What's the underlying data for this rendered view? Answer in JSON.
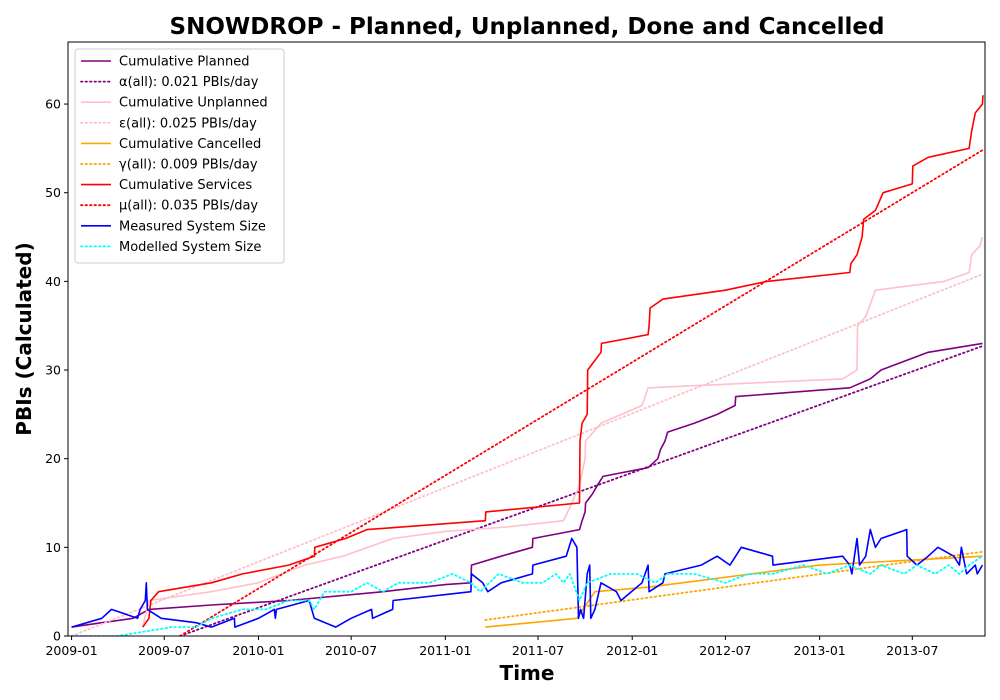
{
  "chart_data": {
    "type": "line",
    "title": "SNOWDROP - Planned, Unplanned, Done  and Cancelled",
    "xlabel": "Time",
    "ylabel": "PBIs (Calculated)",
    "xlim": [
      "2008-12-25",
      "2013-11-20"
    ],
    "ylim": [
      0,
      67
    ],
    "x_ticks": [
      "2009-01-01",
      "2009-07-01",
      "2010-01-01",
      "2010-07-01",
      "2011-01-01",
      "2011-07-01",
      "2012-01-01",
      "2012-07-01",
      "2013-01-01",
      "2013-07-01"
    ],
    "x_tick_labels": [
      "2009-01",
      "2009-07",
      "2010-01",
      "2010-07",
      "2011-01",
      "2011-07",
      "2012-01",
      "2012-07",
      "2013-01",
      "2013-07"
    ],
    "y_ticks": [
      0,
      10,
      20,
      30,
      40,
      50,
      60
    ],
    "grid": false,
    "legend_position": "top-left",
    "series": [
      {
        "name": "Cumulative Planned",
        "color": "#800080",
        "style": "solid",
        "points": [
          [
            "2009-01-01",
            1
          ],
          [
            "2009-03-01",
            1.5
          ],
          [
            "2009-05-01",
            2
          ],
          [
            "2009-06-01",
            3
          ],
          [
            "2009-10-01",
            3.5
          ],
          [
            "2010-03-01",
            4
          ],
          [
            "2010-09-01",
            5
          ],
          [
            "2011-01-01",
            5.8
          ],
          [
            "2011-02-20",
            6
          ],
          [
            "2011-02-21",
            8
          ],
          [
            "2011-04-20",
            9
          ],
          [
            "2011-06-20",
            10
          ],
          [
            "2011-06-21",
            11
          ],
          [
            "2011-09-20",
            12
          ],
          [
            "2011-09-25",
            13
          ],
          [
            "2011-10-01",
            14
          ],
          [
            "2011-10-02",
            15
          ],
          [
            "2011-10-15",
            16
          ],
          [
            "2011-10-25",
            17
          ],
          [
            "2011-11-05",
            18
          ],
          [
            "2012-02-01",
            19
          ],
          [
            "2012-02-20",
            20
          ],
          [
            "2012-02-25",
            21
          ],
          [
            "2012-03-05",
            22
          ],
          [
            "2012-03-10",
            23
          ],
          [
            "2012-05-01",
            24
          ],
          [
            "2012-06-15",
            25
          ],
          [
            "2012-07-20",
            26
          ],
          [
            "2012-07-21",
            27
          ],
          [
            "2013-03-01",
            28
          ],
          [
            "2013-04-10",
            29
          ],
          [
            "2013-05-01",
            30
          ],
          [
            "2013-08-01",
            32
          ],
          [
            "2013-11-15",
            33
          ]
        ]
      },
      {
        "name": "α(all): 0.021 PBIs/day",
        "color": "#800080",
        "style": "dotted",
        "points": [
          [
            "2009-08-01",
            0
          ],
          [
            "2013-11-15",
            32.7
          ]
        ]
      },
      {
        "name": "Cumulative Unplanned",
        "color": "#ffc0cb",
        "style": "solid",
        "points": [
          [
            "2009-05-20",
            1
          ],
          [
            "2009-06-01",
            4
          ],
          [
            "2009-10-01",
            5
          ],
          [
            "2010-01-01",
            6
          ],
          [
            "2010-04-01",
            8
          ],
          [
            "2010-06-15",
            9
          ],
          [
            "2010-09-20",
            11
          ],
          [
            "2011-01-01",
            11.8
          ],
          [
            "2011-05-01",
            12.3
          ],
          [
            "2011-08-20",
            13
          ],
          [
            "2011-09-05",
            15
          ],
          [
            "2011-09-20",
            17
          ],
          [
            "2011-10-01",
            20
          ],
          [
            "2011-10-02",
            22
          ],
          [
            "2011-11-01",
            24
          ],
          [
            "2012-01-20",
            26
          ],
          [
            "2012-02-01",
            28
          ],
          [
            "2013-02-15",
            29
          ],
          [
            "2013-03-15",
            30
          ],
          [
            "2013-03-16",
            35
          ],
          [
            "2013-04-01",
            36
          ],
          [
            "2013-04-20",
            39
          ],
          [
            "2013-09-01",
            40
          ],
          [
            "2013-10-20",
            41
          ],
          [
            "2013-10-25",
            43
          ],
          [
            "2013-11-10",
            44
          ],
          [
            "2013-11-15",
            45
          ]
        ]
      },
      {
        "name": "ε(all): 0.025 PBIs/day",
        "color": "#ffc0cb",
        "style": "dotted",
        "points": [
          [
            "2009-01-01",
            0
          ],
          [
            "2013-11-15",
            40.8
          ]
        ]
      },
      {
        "name": "Cumulative Cancelled",
        "color": "#ffa500",
        "style": "solid",
        "points": [
          [
            "2011-03-20",
            1
          ],
          [
            "2011-09-15",
            2
          ],
          [
            "2011-10-20",
            5
          ],
          [
            "2012-02-01",
            5.5
          ],
          [
            "2013-01-01",
            8
          ],
          [
            "2013-11-15",
            9
          ]
        ]
      },
      {
        "name": "γ(all): 0.009 PBIs/day",
        "color": "#ffa500",
        "style": "dotted",
        "points": [
          [
            "2011-03-20",
            1.8
          ],
          [
            "2013-11-15",
            9.5
          ]
        ]
      },
      {
        "name": "Cumulative Services",
        "color": "#ff0000",
        "style": "solid",
        "points": [
          [
            "2009-05-20",
            1
          ],
          [
            "2009-06-01",
            2
          ],
          [
            "2009-06-05",
            4
          ],
          [
            "2009-06-20",
            5
          ],
          [
            "2009-10-01",
            6
          ],
          [
            "2009-12-01",
            7
          ],
          [
            "2010-03-01",
            8
          ],
          [
            "2010-04-20",
            9
          ],
          [
            "2010-04-21",
            10
          ],
          [
            "2010-06-20",
            11
          ],
          [
            "2010-08-01",
            12
          ],
          [
            "2011-03-20",
            13
          ],
          [
            "2011-03-21",
            14
          ],
          [
            "2011-09-20",
            15
          ],
          [
            "2011-09-21",
            22
          ],
          [
            "2011-09-25",
            24
          ],
          [
            "2011-10-05",
            25
          ],
          [
            "2011-10-06",
            30
          ],
          [
            "2011-11-01",
            32
          ],
          [
            "2011-11-02",
            33
          ],
          [
            "2012-02-01",
            34
          ],
          [
            "2012-02-03",
            35
          ],
          [
            "2012-02-05",
            37
          ],
          [
            "2012-03-01",
            38
          ],
          [
            "2012-07-01",
            39
          ],
          [
            "2012-09-20",
            40
          ],
          [
            "2013-03-01",
            41
          ],
          [
            "2013-03-03",
            42
          ],
          [
            "2013-03-15",
            43
          ],
          [
            "2013-03-25",
            45
          ],
          [
            "2013-03-28",
            47
          ],
          [
            "2013-04-20",
            48
          ],
          [
            "2013-05-05",
            50
          ],
          [
            "2013-07-01",
            51
          ],
          [
            "2013-07-02",
            53
          ],
          [
            "2013-08-01",
            54
          ],
          [
            "2013-10-20",
            55
          ],
          [
            "2013-10-25",
            57
          ],
          [
            "2013-11-01",
            59
          ],
          [
            "2013-11-15",
            60
          ],
          [
            "2013-11-16",
            61
          ]
        ]
      },
      {
        "name": "μ(all): 0.035 PBIs/day",
        "color": "#ff0000",
        "style": "dotted",
        "points": [
          [
            "2009-08-01",
            0
          ],
          [
            "2013-11-15",
            54.8
          ]
        ]
      },
      {
        "name": "Measured System Size",
        "color": "#0000ff",
        "style": "solid",
        "points": [
          [
            "2009-01-01",
            1
          ],
          [
            "2009-03-01",
            2
          ],
          [
            "2009-03-20",
            3
          ],
          [
            "2009-05-10",
            2
          ],
          [
            "2009-05-15",
            3
          ],
          [
            "2009-05-25",
            4
          ],
          [
            "2009-05-27",
            6
          ],
          [
            "2009-05-29",
            3
          ],
          [
            "2009-06-25",
            2
          ],
          [
            "2009-09-01",
            1.5
          ],
          [
            "2009-10-01",
            1
          ],
          [
            "2009-11-15",
            2
          ],
          [
            "2009-11-16",
            1
          ],
          [
            "2010-01-01",
            2
          ],
          [
            "2010-02-01",
            3
          ],
          [
            "2010-02-03",
            2
          ],
          [
            "2010-02-05",
            3
          ],
          [
            "2010-04-10",
            4
          ],
          [
            "2010-04-20",
            2
          ],
          [
            "2010-06-01",
            1
          ],
          [
            "2010-07-01",
            2
          ],
          [
            "2010-08-10",
            3
          ],
          [
            "2010-08-12",
            2
          ],
          [
            "2010-09-20",
            3
          ],
          [
            "2010-09-21",
            4
          ],
          [
            "2011-02-20",
            5
          ],
          [
            "2011-02-21",
            7
          ],
          [
            "2011-03-15",
            6
          ],
          [
            "2011-03-25",
            5
          ],
          [
            "2011-04-20",
            6
          ],
          [
            "2011-06-20",
            7
          ],
          [
            "2011-06-21",
            8
          ],
          [
            "2011-08-25",
            9
          ],
          [
            "2011-09-05",
            11
          ],
          [
            "2011-09-15",
            10
          ],
          [
            "2011-09-18",
            2
          ],
          [
            "2011-09-22",
            3
          ],
          [
            "2011-09-28",
            2
          ],
          [
            "2011-10-05",
            7
          ],
          [
            "2011-10-10",
            8
          ],
          [
            "2011-10-12",
            2
          ],
          [
            "2011-10-20",
            3
          ],
          [
            "2011-11-01",
            6
          ],
          [
            "2011-12-01",
            5
          ],
          [
            "2011-12-10",
            4
          ],
          [
            "2012-01-20",
            6
          ],
          [
            "2012-02-01",
            8
          ],
          [
            "2012-02-03",
            5
          ],
          [
            "2012-03-01",
            6
          ],
          [
            "2012-03-05",
            7
          ],
          [
            "2012-05-15",
            8
          ],
          [
            "2012-06-15",
            9
          ],
          [
            "2012-07-10",
            8
          ],
          [
            "2012-08-01",
            10
          ],
          [
            "2012-10-01",
            9
          ],
          [
            "2012-10-02",
            8
          ],
          [
            "2013-02-15",
            9
          ],
          [
            "2013-03-01",
            8
          ],
          [
            "2013-03-05",
            7
          ],
          [
            "2013-03-15",
            11
          ],
          [
            "2013-03-20",
            8
          ],
          [
            "2013-04-01",
            9
          ],
          [
            "2013-04-10",
            12
          ],
          [
            "2013-04-20",
            10
          ],
          [
            "2013-05-01",
            11
          ],
          [
            "2013-06-20",
            12
          ],
          [
            "2013-06-21",
            9
          ],
          [
            "2013-07-10",
            8
          ],
          [
            "2013-08-01",
            9
          ],
          [
            "2013-08-20",
            10
          ],
          [
            "2013-09-20",
            9
          ],
          [
            "2013-10-01",
            8
          ],
          [
            "2013-10-05",
            10
          ],
          [
            "2013-10-15",
            7
          ],
          [
            "2013-11-01",
            8
          ],
          [
            "2013-11-05",
            7
          ],
          [
            "2013-11-15",
            8
          ]
        ]
      },
      {
        "name": "Modelled System Size",
        "color": "#00ffff",
        "style": "dotted",
        "points": [
          [
            "2009-01-01",
            0
          ],
          [
            "2009-04-01",
            0
          ],
          [
            "2009-07-15",
            1
          ],
          [
            "2009-09-01",
            1
          ],
          [
            "2009-10-01",
            2
          ],
          [
            "2009-12-01",
            3
          ],
          [
            "2010-01-15",
            3
          ],
          [
            "2010-03-01",
            4
          ],
          [
            "2010-04-10",
            4
          ],
          [
            "2010-04-20",
            3
          ],
          [
            "2010-05-10",
            5
          ],
          [
            "2010-07-01",
            5
          ],
          [
            "2010-08-01",
            6
          ],
          [
            "2010-09-01",
            5
          ],
          [
            "2010-10-01",
            6
          ],
          [
            "2010-12-01",
            6
          ],
          [
            "2011-01-15",
            7
          ],
          [
            "2011-02-20",
            6
          ],
          [
            "2011-03-10",
            5
          ],
          [
            "2011-04-15",
            7
          ],
          [
            "2011-06-01",
            6
          ],
          [
            "2011-07-10",
            6
          ],
          [
            "2011-08-05",
            7
          ],
          [
            "2011-08-20",
            6
          ],
          [
            "2011-09-01",
            7
          ],
          [
            "2011-09-20",
            4
          ],
          [
            "2011-10-05",
            6
          ],
          [
            "2011-11-20",
            7
          ],
          [
            "2012-01-10",
            7
          ],
          [
            "2012-02-15",
            6
          ],
          [
            "2012-03-10",
            7
          ],
          [
            "2012-05-01",
            7
          ],
          [
            "2012-07-01",
            6
          ],
          [
            "2012-08-15",
            7
          ],
          [
            "2012-10-01",
            7
          ],
          [
            "2012-12-01",
            8
          ],
          [
            "2013-01-15",
            7
          ],
          [
            "2013-03-01",
            8
          ],
          [
            "2013-04-10",
            7
          ],
          [
            "2013-05-01",
            8
          ],
          [
            "2013-06-15",
            7
          ],
          [
            "2013-07-10",
            8
          ],
          [
            "2013-08-15",
            7
          ],
          [
            "2013-09-10",
            8
          ],
          [
            "2013-10-01",
            7
          ],
          [
            "2013-10-20",
            8
          ],
          [
            "2013-11-15",
            9
          ]
        ]
      }
    ]
  }
}
